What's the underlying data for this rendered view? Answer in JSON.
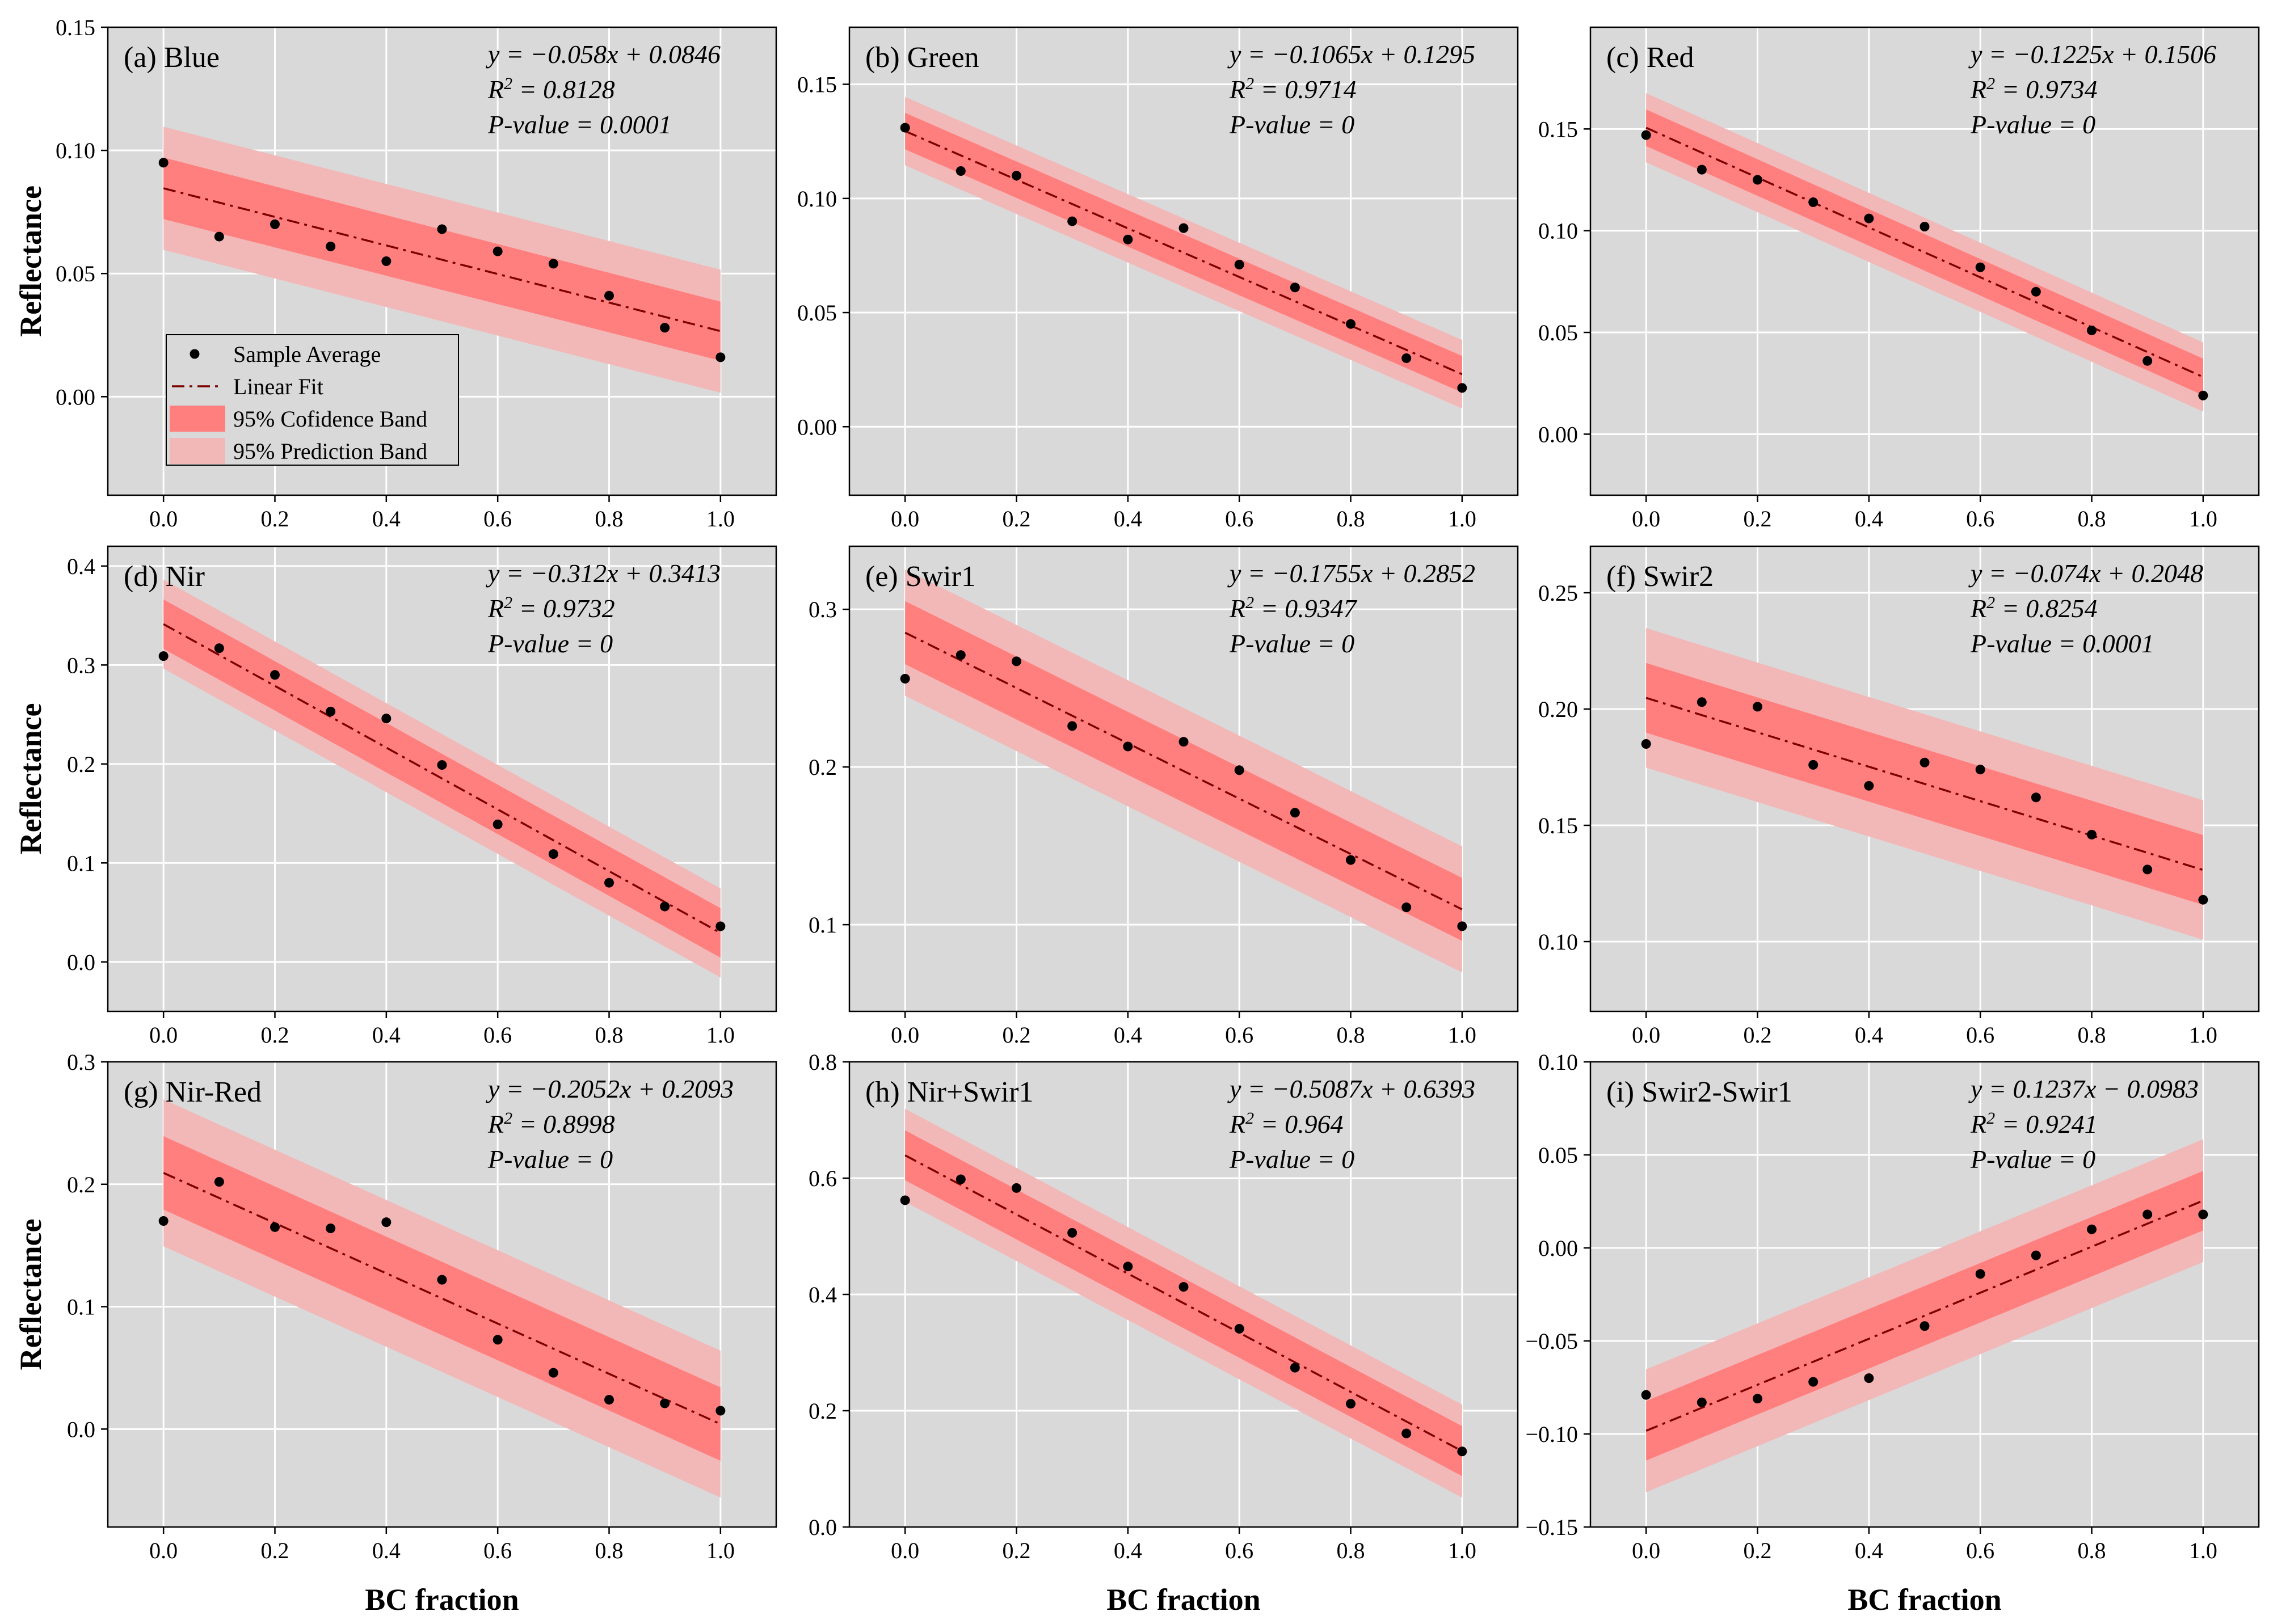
{
  "figure": {
    "xlabel": "BC fraction",
    "ylabel": "Reflectance",
    "legend": {
      "placement": "panel-a-lower-left",
      "items": [
        {
          "key": "sample",
          "label": "Sample Average"
        },
        {
          "key": "fit",
          "label": "Linear Fit"
        },
        {
          "key": "conf",
          "label": "95% Cofidence Band"
        },
        {
          "key": "pred",
          "label": "95% Prediction Band"
        }
      ]
    },
    "colors": {
      "panel_bg": "#d9d9d9",
      "grid": "#ffffff",
      "confidence": "#ff7f7f",
      "prediction": "#f2b8b8",
      "fit_line": "#7a0000",
      "points": "#000000"
    }
  },
  "chart_data": [
    {
      "type": "scatter",
      "title": "(a) Blue",
      "equation": "y = −0.058x + 0.0846",
      "r2": "R² = 0.8128",
      "pvalue": "P-value = 0.0001",
      "x": [
        0,
        0.1,
        0.2,
        0.3,
        0.4,
        0.5,
        0.6,
        0.7,
        0.8,
        0.9,
        1.0
      ],
      "y": [
        0.095,
        0.065,
        0.07,
        0.061,
        0.055,
        0.068,
        0.059,
        0.054,
        0.041,
        0.028,
        0.016
      ],
      "fit": {
        "slope": -0.058,
        "intercept": 0.0846
      },
      "conf_band": {
        "at0": 0.0125,
        "at1": 0.012
      },
      "pred_band": {
        "at0": 0.025,
        "at1": 0.025
      },
      "xlim": [
        -0.1,
        1.1
      ],
      "ylim": [
        -0.04,
        0.15
      ],
      "xticks": [
        "0.0",
        "0.2",
        "0.4",
        "0.6",
        "0.8",
        "1.0"
      ],
      "yticks": [
        "0.00",
        "0.05",
        "0.10",
        "0.15"
      ],
      "yticks_values": [
        0,
        0.05,
        0.1,
        0.15
      ]
    },
    {
      "type": "scatter",
      "title": "(b) Green",
      "equation": "y = −0.1065x + 0.1295",
      "r2": "R² = 0.9714",
      "pvalue": "P-value = 0",
      "x": [
        0,
        0.1,
        0.2,
        0.3,
        0.4,
        0.5,
        0.6,
        0.7,
        0.8,
        0.9,
        1.0
      ],
      "y": [
        0.131,
        0.112,
        0.11,
        0.09,
        0.082,
        0.087,
        0.071,
        0.061,
        0.045,
        0.03,
        0.017
      ],
      "fit": {
        "slope": -0.1065,
        "intercept": 0.1295
      },
      "conf_band": {
        "at0": 0.008,
        "at1": 0.008
      },
      "pred_band": {
        "at0": 0.015,
        "at1": 0.015
      },
      "xlim": [
        -0.1,
        1.1
      ],
      "ylim": [
        -0.03,
        0.175
      ],
      "xticks": [
        "0.0",
        "0.2",
        "0.4",
        "0.6",
        "0.8",
        "1.0"
      ],
      "yticks": [
        "0.00",
        "0.05",
        "0.10",
        "0.15"
      ],
      "yticks_values": [
        0,
        0.05,
        0.1,
        0.15
      ]
    },
    {
      "type": "scatter",
      "title": "(c) Red",
      "equation": "y = −0.1225x + 0.1506",
      "r2": "R² = 0.9734",
      "pvalue": "P-value = 0",
      "x": [
        0,
        0.1,
        0.2,
        0.3,
        0.4,
        0.5,
        0.6,
        0.7,
        0.8,
        0.9,
        1.0
      ],
      "y": [
        0.147,
        0.13,
        0.125,
        0.114,
        0.106,
        0.102,
        0.082,
        0.07,
        0.051,
        0.036,
        0.019
      ],
      "fit": {
        "slope": -0.1225,
        "intercept": 0.1506
      },
      "conf_band": {
        "at0": 0.009,
        "at1": 0.009
      },
      "pred_band": {
        "at0": 0.017,
        "at1": 0.017
      },
      "xlim": [
        -0.1,
        1.1
      ],
      "ylim": [
        -0.03,
        0.2
      ],
      "xticks": [
        "0.0",
        "0.2",
        "0.4",
        "0.6",
        "0.8",
        "1.0"
      ],
      "yticks": [
        "0.00",
        "0.05",
        "0.10",
        "0.15"
      ],
      "yticks_values": [
        0,
        0.05,
        0.1,
        0.15
      ]
    },
    {
      "type": "scatter",
      "title": "(d) Nir",
      "equation": "y = −0.312x + 0.3413",
      "r2": "R² = 0.9732",
      "pvalue": "P-value = 0",
      "x": [
        0,
        0.1,
        0.2,
        0.3,
        0.4,
        0.5,
        0.6,
        0.7,
        0.8,
        0.9,
        1.0
      ],
      "y": [
        0.309,
        0.317,
        0.29,
        0.253,
        0.246,
        0.199,
        0.139,
        0.109,
        0.08,
        0.056,
        0.036
      ],
      "fit": {
        "slope": -0.312,
        "intercept": 0.3413
      },
      "conf_band": {
        "at0": 0.025,
        "at1": 0.025
      },
      "pred_band": {
        "at0": 0.045,
        "at1": 0.045
      },
      "xlim": [
        -0.1,
        1.1
      ],
      "ylim": [
        -0.05,
        0.42
      ],
      "xticks": [
        "0.0",
        "0.2",
        "0.4",
        "0.6",
        "0.8",
        "1.0"
      ],
      "yticks": [
        "0.0",
        "0.1",
        "0.2",
        "0.3",
        "0.4"
      ],
      "yticks_values": [
        0,
        0.1,
        0.2,
        0.3,
        0.4
      ]
    },
    {
      "type": "scatter",
      "title": "(e) Swir1",
      "equation": "y = −0.1755x + 0.2852",
      "r2": "R² = 0.9347",
      "pvalue": "P-value = 0",
      "x": [
        0,
        0.1,
        0.2,
        0.3,
        0.4,
        0.5,
        0.6,
        0.7,
        0.8,
        0.9,
        1.0
      ],
      "y": [
        0.256,
        0.271,
        0.267,
        0.226,
        0.213,
        0.216,
        0.198,
        0.171,
        0.141,
        0.111,
        0.099
      ],
      "fit": {
        "slope": -0.1755,
        "intercept": 0.2852
      },
      "conf_band": {
        "at0": 0.02,
        "at1": 0.02
      },
      "pred_band": {
        "at0": 0.04,
        "at1": 0.04
      },
      "xlim": [
        -0.1,
        1.1
      ],
      "ylim": [
        0.045,
        0.34
      ],
      "xticks": [
        "0.0",
        "0.2",
        "0.4",
        "0.6",
        "0.8",
        "1.0"
      ],
      "yticks": [
        "0.1",
        "0.2",
        "0.3"
      ],
      "yticks_values": [
        0.1,
        0.2,
        0.3
      ]
    },
    {
      "type": "scatter",
      "title": "(f) Swir2",
      "equation": "y = −0.074x + 0.2048",
      "r2": "R² = 0.8254",
      "pvalue": "P-value = 0.0001",
      "x": [
        0,
        0.1,
        0.2,
        0.3,
        0.4,
        0.5,
        0.6,
        0.7,
        0.8,
        0.9,
        1.0
      ],
      "y": [
        0.185,
        0.203,
        0.201,
        0.176,
        0.167,
        0.177,
        0.174,
        0.162,
        0.146,
        0.131,
        0.118
      ],
      "fit": {
        "slope": -0.074,
        "intercept": 0.2048
      },
      "conf_band": {
        "at0": 0.015,
        "at1": 0.015
      },
      "pred_band": {
        "at0": 0.03,
        "at1": 0.03
      },
      "xlim": [
        -0.1,
        1.1
      ],
      "ylim": [
        0.07,
        0.27
      ],
      "xticks": [
        "0.0",
        "0.2",
        "0.4",
        "0.6",
        "0.8",
        "1.0"
      ],
      "yticks": [
        "0.10",
        "0.15",
        "0.20",
        "0.25"
      ],
      "yticks_values": [
        0.1,
        0.15,
        0.2,
        0.25
      ]
    },
    {
      "type": "scatter",
      "title": "(g) Nir-Red",
      "equation": "y = −0.2052x + 0.2093",
      "r2": "R² = 0.8998",
      "pvalue": "P-value = 0",
      "x": [
        0,
        0.1,
        0.2,
        0.3,
        0.4,
        0.5,
        0.6,
        0.7,
        0.8,
        0.9,
        1.0
      ],
      "y": [
        0.17,
        0.202,
        0.165,
        0.164,
        0.169,
        0.122,
        0.073,
        0.046,
        0.024,
        0.021,
        0.015
      ],
      "fit": {
        "slope": -0.2052,
        "intercept": 0.2093
      },
      "conf_band": {
        "at0": 0.03,
        "at1": 0.03
      },
      "pred_band": {
        "at0": 0.06,
        "at1": 0.06
      },
      "xlim": [
        -0.1,
        1.1
      ],
      "ylim": [
        -0.08,
        0.3
      ],
      "xticks": [
        "0.0",
        "0.2",
        "0.4",
        "0.6",
        "0.8",
        "1.0"
      ],
      "yticks": [
        "0.0",
        "0.1",
        "0.2",
        "0.3"
      ],
      "yticks_values": [
        0,
        0.1,
        0.2,
        0.3
      ]
    },
    {
      "type": "scatter",
      "title": "(h) Nir+Swir1",
      "equation": "y = −0.5087x + 0.6393",
      "r2": "R² = 0.964",
      "pvalue": "P-value = 0",
      "x": [
        0,
        0.1,
        0.2,
        0.3,
        0.4,
        0.5,
        0.6,
        0.7,
        0.8,
        0.9,
        1.0
      ],
      "y": [
        0.562,
        0.598,
        0.583,
        0.506,
        0.448,
        0.413,
        0.341,
        0.274,
        0.212,
        0.161,
        0.13
      ],
      "fit": {
        "slope": -0.5087,
        "intercept": 0.6393
      },
      "conf_band": {
        "at0": 0.043,
        "at1": 0.043
      },
      "pred_band": {
        "at0": 0.08,
        "at1": 0.08
      },
      "xlim": [
        -0.1,
        1.1
      ],
      "ylim": [
        0.0,
        0.8
      ],
      "xticks": [
        "0.0",
        "0.2",
        "0.4",
        "0.6",
        "0.8",
        "1.0"
      ],
      "yticks": [
        "0.0",
        "0.2",
        "0.4",
        "0.6",
        "0.8"
      ],
      "yticks_values": [
        0,
        0.2,
        0.4,
        0.6,
        0.8
      ]
    },
    {
      "type": "scatter",
      "title": "(i) Swir2-Swir1",
      "equation": "y = 0.1237x − 0.0983",
      "r2": "R² = 0.9241",
      "pvalue": "P-value = 0",
      "x": [
        0,
        0.1,
        0.2,
        0.3,
        0.4,
        0.5,
        0.6,
        0.7,
        0.8,
        0.9,
        1.0
      ],
      "y": [
        -0.079,
        -0.083,
        -0.081,
        -0.072,
        -0.07,
        -0.042,
        -0.014,
        -0.004,
        0.01,
        0.018,
        0.018
      ],
      "fit": {
        "slope": 0.1237,
        "intercept": -0.0983
      },
      "conf_band": {
        "at0": 0.016,
        "at1": 0.016
      },
      "pred_band": {
        "at0": 0.033,
        "at1": 0.033
      },
      "xlim": [
        -0.1,
        1.1
      ],
      "ylim": [
        -0.15,
        0.1
      ],
      "xticks": [
        "0.0",
        "0.2",
        "0.4",
        "0.6",
        "0.8",
        "1.0"
      ],
      "yticks": [
        "−0.15",
        "−0.10",
        "−0.05",
        "0.00",
        "0.05",
        "0.10"
      ],
      "yticks_values": [
        -0.15,
        -0.1,
        -0.05,
        0,
        0.05,
        0.1
      ]
    }
  ]
}
